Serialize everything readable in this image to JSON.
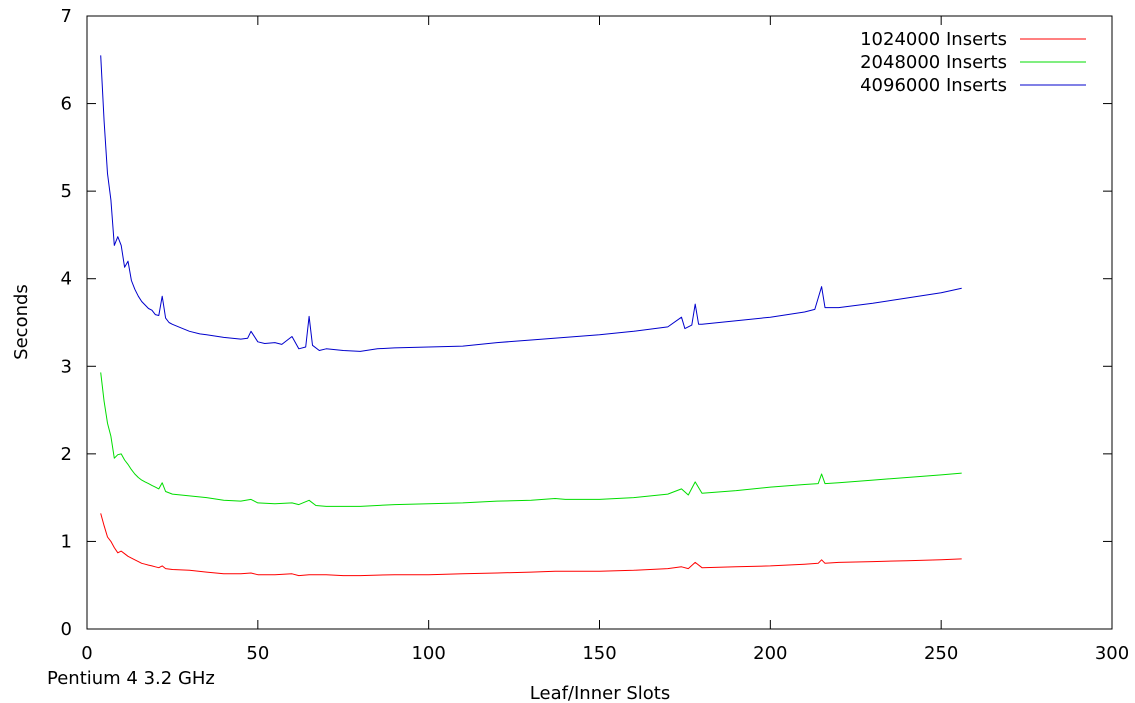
{
  "chart_data": {
    "type": "line",
    "title": "",
    "xlabel": "Leaf/Inner Slots",
    "ylabel": "Seconds",
    "footnote": "Pentium 4 3.2 GHz",
    "xlim": [
      0,
      300
    ],
    "ylim": [
      0,
      7
    ],
    "xticks": [
      0,
      50,
      100,
      150,
      200,
      250,
      300
    ],
    "yticks": [
      0,
      1,
      2,
      3,
      4,
      5,
      6,
      7
    ],
    "grid": false,
    "legend_position": "top-right",
    "series": [
      {
        "name": "1024000 Inserts",
        "color": "#ff0000",
        "points": [
          [
            4,
            1.32
          ],
          [
            5,
            1.18
          ],
          [
            6,
            1.05
          ],
          [
            7,
            1.0
          ],
          [
            8,
            0.93
          ],
          [
            9,
            0.87
          ],
          [
            10,
            0.89
          ],
          [
            11,
            0.86
          ],
          [
            12,
            0.83
          ],
          [
            13,
            0.81
          ],
          [
            14,
            0.79
          ],
          [
            15,
            0.77
          ],
          [
            16,
            0.75
          ],
          [
            17,
            0.74
          ],
          [
            18,
            0.73
          ],
          [
            19,
            0.72
          ],
          [
            20,
            0.71
          ],
          [
            21,
            0.7
          ],
          [
            22,
            0.72
          ],
          [
            23,
            0.69
          ],
          [
            25,
            0.68
          ],
          [
            30,
            0.67
          ],
          [
            35,
            0.65
          ],
          [
            40,
            0.63
          ],
          [
            45,
            0.63
          ],
          [
            48,
            0.64
          ],
          [
            50,
            0.62
          ],
          [
            55,
            0.62
          ],
          [
            60,
            0.63
          ],
          [
            62,
            0.61
          ],
          [
            65,
            0.62
          ],
          [
            70,
            0.62
          ],
          [
            75,
            0.61
          ],
          [
            80,
            0.61
          ],
          [
            90,
            0.62
          ],
          [
            100,
            0.62
          ],
          [
            110,
            0.63
          ],
          [
            120,
            0.64
          ],
          [
            130,
            0.65
          ],
          [
            137,
            0.66
          ],
          [
            140,
            0.66
          ],
          [
            150,
            0.66
          ],
          [
            160,
            0.67
          ],
          [
            170,
            0.69
          ],
          [
            174,
            0.71
          ],
          [
            176,
            0.69
          ],
          [
            178,
            0.76
          ],
          [
            180,
            0.7
          ],
          [
            190,
            0.71
          ],
          [
            200,
            0.72
          ],
          [
            210,
            0.74
          ],
          [
            214,
            0.75
          ],
          [
            215,
            0.79
          ],
          [
            216,
            0.75
          ],
          [
            220,
            0.76
          ],
          [
            230,
            0.77
          ],
          [
            240,
            0.78
          ],
          [
            250,
            0.79
          ],
          [
            256,
            0.8
          ]
        ]
      },
      {
        "name": "2048000 Inserts",
        "color": "#00dd00",
        "points": [
          [
            4,
            2.93
          ],
          [
            5,
            2.6
          ],
          [
            6,
            2.35
          ],
          [
            7,
            2.2
          ],
          [
            8,
            1.95
          ],
          [
            9,
            1.99
          ],
          [
            10,
            2.0
          ],
          [
            11,
            1.93
          ],
          [
            12,
            1.88
          ],
          [
            13,
            1.82
          ],
          [
            14,
            1.77
          ],
          [
            15,
            1.73
          ],
          [
            16,
            1.7
          ],
          [
            17,
            1.68
          ],
          [
            18,
            1.66
          ],
          [
            19,
            1.64
          ],
          [
            20,
            1.62
          ],
          [
            21,
            1.6
          ],
          [
            22,
            1.67
          ],
          [
            23,
            1.57
          ],
          [
            25,
            1.54
          ],
          [
            30,
            1.52
          ],
          [
            35,
            1.5
          ],
          [
            40,
            1.47
          ],
          [
            45,
            1.46
          ],
          [
            48,
            1.48
          ],
          [
            50,
            1.44
          ],
          [
            55,
            1.43
          ],
          [
            60,
            1.44
          ],
          [
            62,
            1.42
          ],
          [
            65,
            1.47
          ],
          [
            67,
            1.41
          ],
          [
            70,
            1.4
          ],
          [
            75,
            1.4
          ],
          [
            80,
            1.4
          ],
          [
            90,
            1.42
          ],
          [
            100,
            1.43
          ],
          [
            110,
            1.44
          ],
          [
            120,
            1.46
          ],
          [
            130,
            1.47
          ],
          [
            137,
            1.49
          ],
          [
            140,
            1.48
          ],
          [
            150,
            1.48
          ],
          [
            160,
            1.5
          ],
          [
            170,
            1.54
          ],
          [
            174,
            1.6
          ],
          [
            176,
            1.53
          ],
          [
            178,
            1.68
          ],
          [
            180,
            1.55
          ],
          [
            190,
            1.58
          ],
          [
            200,
            1.62
          ],
          [
            210,
            1.65
          ],
          [
            214,
            1.66
          ],
          [
            215,
            1.77
          ],
          [
            216,
            1.66
          ],
          [
            220,
            1.67
          ],
          [
            230,
            1.7
          ],
          [
            240,
            1.73
          ],
          [
            250,
            1.76
          ],
          [
            256,
            1.78
          ]
        ]
      },
      {
        "name": "4096000 Inserts",
        "color": "#0000cc",
        "points": [
          [
            4,
            6.55
          ],
          [
            5,
            5.8
          ],
          [
            6,
            5.2
          ],
          [
            7,
            4.9
          ],
          [
            8,
            4.38
          ],
          [
            9,
            4.48
          ],
          [
            10,
            4.38
          ],
          [
            11,
            4.13
          ],
          [
            12,
            4.2
          ],
          [
            13,
            3.98
          ],
          [
            14,
            3.88
          ],
          [
            15,
            3.8
          ],
          [
            16,
            3.74
          ],
          [
            17,
            3.7
          ],
          [
            18,
            3.66
          ],
          [
            19,
            3.64
          ],
          [
            20,
            3.59
          ],
          [
            21,
            3.58
          ],
          [
            22,
            3.8
          ],
          [
            23,
            3.55
          ],
          [
            24,
            3.5
          ],
          [
            25,
            3.48
          ],
          [
            28,
            3.43
          ],
          [
            30,
            3.4
          ],
          [
            33,
            3.37
          ],
          [
            35,
            3.36
          ],
          [
            40,
            3.33
          ],
          [
            45,
            3.31
          ],
          [
            47,
            3.32
          ],
          [
            48,
            3.4
          ],
          [
            50,
            3.28
          ],
          [
            52,
            3.26
          ],
          [
            55,
            3.27
          ],
          [
            57,
            3.25
          ],
          [
            60,
            3.34
          ],
          [
            62,
            3.2
          ],
          [
            64,
            3.22
          ],
          [
            65,
            3.57
          ],
          [
            66,
            3.24
          ],
          [
            68,
            3.18
          ],
          [
            70,
            3.2
          ],
          [
            75,
            3.18
          ],
          [
            80,
            3.17
          ],
          [
            85,
            3.2
          ],
          [
            90,
            3.21
          ],
          [
            100,
            3.22
          ],
          [
            110,
            3.23
          ],
          [
            120,
            3.27
          ],
          [
            130,
            3.3
          ],
          [
            140,
            3.33
          ],
          [
            150,
            3.36
          ],
          [
            160,
            3.4
          ],
          [
            170,
            3.45
          ],
          [
            174,
            3.56
          ],
          [
            175,
            3.43
          ],
          [
            177,
            3.47
          ],
          [
            178,
            3.71
          ],
          [
            179,
            3.48
          ],
          [
            180,
            3.48
          ],
          [
            190,
            3.52
          ],
          [
            200,
            3.56
          ],
          [
            210,
            3.62
          ],
          [
            213,
            3.65
          ],
          [
            215,
            3.91
          ],
          [
            216,
            3.67
          ],
          [
            220,
            3.67
          ],
          [
            230,
            3.72
          ],
          [
            240,
            3.78
          ],
          [
            250,
            3.84
          ],
          [
            256,
            3.89
          ]
        ]
      }
    ]
  }
}
